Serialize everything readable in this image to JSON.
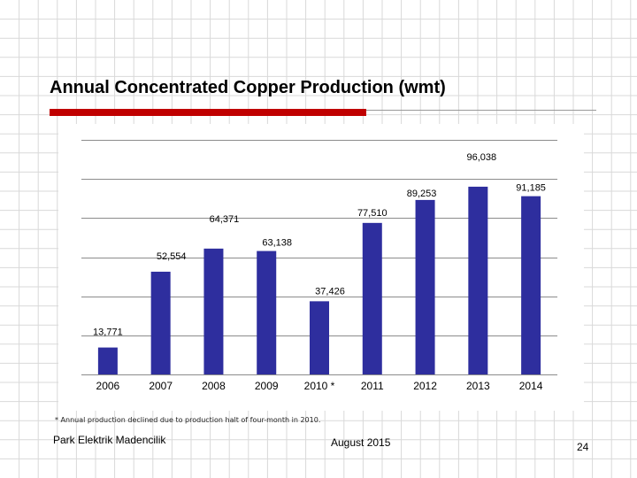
{
  "slide": {
    "title": "Annual Concentrated Copper Production (wmt)",
    "footnote": "* Annual production declined due to production halt of four-month in 2010.",
    "company": "Park Elektrik Madencilik",
    "date": "August 2015",
    "page_number": "24",
    "accent_color": "#c00000"
  },
  "chart_data": {
    "type": "bar",
    "categories": [
      "2006",
      "2007",
      "2008",
      "2009",
      "2010 *",
      "2011",
      "2012",
      "2013",
      "2014"
    ],
    "values": [
      13771,
      52554,
      64371,
      63138,
      37426,
      77510,
      89253,
      96038,
      91185
    ],
    "value_labels": [
      "13,771",
      "52,554",
      "64,371",
      "63,138",
      "37,426",
      "77,510",
      "89,253",
      "96,038",
      "91,185"
    ],
    "bar_color": "#2e2e9e",
    "ylim": [
      0,
      120000
    ],
    "grid": true,
    "xlabel": "",
    "ylabel": ""
  }
}
